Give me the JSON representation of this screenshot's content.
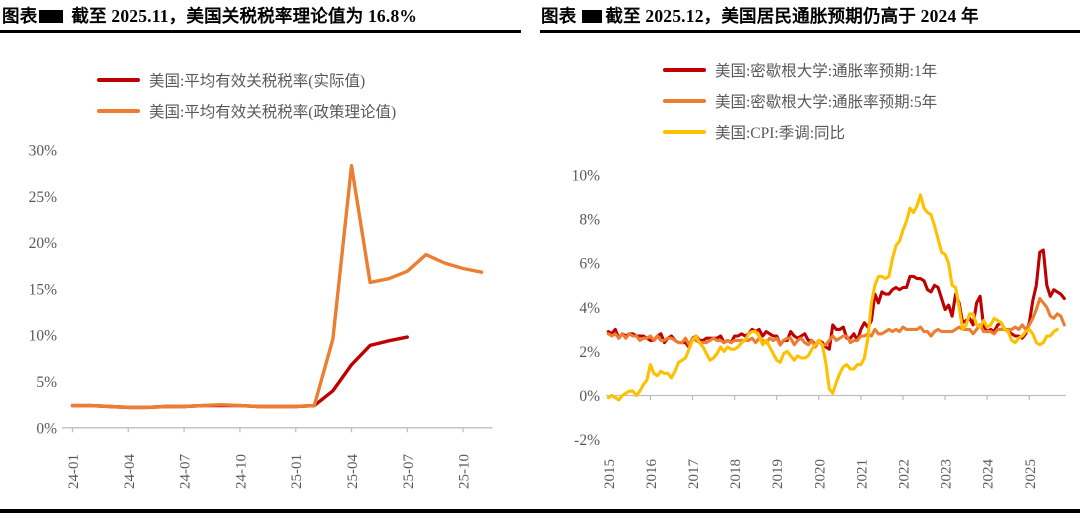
{
  "page": {
    "background": "#ffffff"
  },
  "chart_data": [
    {
      "type": "line",
      "fig_label": "图表",
      "title": "截至 2025.11，美国关税税率理论值为 16.8%",
      "x_start": "2024-01",
      "freq": "monthly",
      "x_tick_labels": [
        "24-01",
        "24-04",
        "24-07",
        "24-10",
        "25-01",
        "25-04",
        "25-07",
        "25-10"
      ],
      "y_tick_values": [
        0,
        5,
        10,
        15,
        20,
        25,
        30
      ],
      "y_tick_labels": [
        "0%",
        "5%",
        "10%",
        "15%",
        "20%",
        "25%",
        "30%"
      ],
      "ylim": [
        0,
        30
      ],
      "grid": false,
      "legend_position": "top",
      "axis_color": "#bfbfbf",
      "text_color": "#595959",
      "series": [
        {
          "name": "美国:平均有效关税税率(实际值)",
          "color": "#c00000",
          "values": [
            2.4,
            2.4,
            2.3,
            2.2,
            2.2,
            2.3,
            2.3,
            2.4,
            2.4,
            2.4,
            2.3,
            2.3,
            2.3,
            2.4,
            4.0,
            6.8,
            8.9,
            9.4,
            9.8
          ]
        },
        {
          "name": "美国:平均有效关税税率(政策理论值)",
          "color": "#ed7d31",
          "values": [
            2.4,
            2.4,
            2.3,
            2.2,
            2.2,
            2.3,
            2.3,
            2.4,
            2.5,
            2.4,
            2.3,
            2.3,
            2.3,
            2.4,
            9.6,
            28.3,
            15.7,
            16.1,
            16.9,
            18.7,
            17.8,
            17.2,
            16.8
          ]
        }
      ]
    },
    {
      "type": "line",
      "fig_label": "图表",
      "title": "截至 2025.12，美国居民通胀预期仍高于 2024 年",
      "x_start": "2015-01",
      "freq": "monthly",
      "x_tick_labels": [
        "2015",
        "2016",
        "2017",
        "2018",
        "2019",
        "2020",
        "2021",
        "2022",
        "2023",
        "2024",
        "2025"
      ],
      "y_tick_values": [
        -2,
        0,
        2,
        4,
        6,
        8,
        10
      ],
      "y_tick_labels": [
        "-2%",
        "0%",
        "2%",
        "4%",
        "6%",
        "8%",
        "10%"
      ],
      "ylim": [
        -2,
        10
      ],
      "grid": false,
      "legend_position": "top",
      "axis_color": "#bfbfbf",
      "text_color": "#595959",
      "series": [
        {
          "name": "美国:密歇根大学:通胀率预期:1年",
          "color": "#c00000",
          "values": [
            2.9,
            2.8,
            3.0,
            2.6,
            2.8,
            2.7,
            2.8,
            2.8,
            2.7,
            2.7,
            2.7,
            2.6,
            2.5,
            2.5,
            2.7,
            2.8,
            2.4,
            2.6,
            2.7,
            2.5,
            2.4,
            2.4,
            2.4,
            2.2,
            2.6,
            2.7,
            2.5,
            2.5,
            2.6,
            2.6,
            2.6,
            2.6,
            2.7,
            2.4,
            2.5,
            2.4,
            2.7,
            2.7,
            2.8,
            2.7,
            2.8,
            3.0,
            2.9,
            3.0,
            2.7,
            2.9,
            2.8,
            2.7,
            2.7,
            2.3,
            2.5,
            2.5,
            2.9,
            2.7,
            2.6,
            2.7,
            2.8,
            2.5,
            2.5,
            2.3,
            2.5,
            2.4,
            2.2,
            2.1,
            3.2,
            3.0,
            3.0,
            3.1,
            2.6,
            2.6,
            2.8,
            2.5,
            3.0,
            3.3,
            3.1,
            3.4,
            4.6,
            4.2,
            4.7,
            4.6,
            4.6,
            4.8,
            4.9,
            4.8,
            4.9,
            4.9,
            5.4,
            5.4,
            5.3,
            5.3,
            5.2,
            4.8,
            4.7,
            5.0,
            4.9,
            4.4,
            3.9,
            4.1,
            3.6,
            4.6,
            4.2,
            3.3,
            3.4,
            3.5,
            3.2,
            4.2,
            4.5,
            3.1,
            2.9,
            3.0,
            2.9,
            3.2,
            3.3,
            3.0,
            2.9,
            2.8,
            2.7,
            2.7,
            2.6,
            2.8,
            3.3,
            4.3,
            5.0,
            6.5,
            6.6,
            5.0,
            4.5,
            4.8,
            4.7,
            4.6,
            4.4
          ]
        },
        {
          "name": "美国:密歇根大学:通胀率预期:5年",
          "color": "#ed7d31",
          "values": [
            2.8,
            2.7,
            2.8,
            2.6,
            2.8,
            2.6,
            2.8,
            2.7,
            2.7,
            2.5,
            2.6,
            2.6,
            2.7,
            2.5,
            2.7,
            2.5,
            2.5,
            2.6,
            2.6,
            2.5,
            2.4,
            2.4,
            2.6,
            2.3,
            2.6,
            2.5,
            2.4,
            2.4,
            2.4,
            2.5,
            2.6,
            2.5,
            2.5,
            2.4,
            2.5,
            2.4,
            2.5,
            2.5,
            2.5,
            2.5,
            2.5,
            2.6,
            2.4,
            2.6,
            2.5,
            2.4,
            2.6,
            2.5,
            2.6,
            2.3,
            2.5,
            2.6,
            2.6,
            2.3,
            2.5,
            2.6,
            2.4,
            2.3,
            2.5,
            2.2,
            2.5,
            2.3,
            2.3,
            2.5,
            2.7,
            2.5,
            2.6,
            2.7,
            2.7,
            2.4,
            2.5,
            2.5,
            2.7,
            2.7,
            2.8,
            2.7,
            3.0,
            2.8,
            2.8,
            2.9,
            3.0,
            2.9,
            3.0,
            2.9,
            3.1,
            3.0,
            3.0,
            3.0,
            3.0,
            3.1,
            2.9,
            2.9,
            2.7,
            2.9,
            3.0,
            2.9,
            2.9,
            2.9,
            2.9,
            3.0,
            3.1,
            3.0,
            3.0,
            3.0,
            2.8,
            3.0,
            3.2,
            2.9,
            2.9,
            2.9,
            2.8,
            3.0,
            3.0,
            3.0,
            3.0,
            3.0,
            3.1,
            3.0,
            3.2,
            3.0,
            3.2,
            3.5,
            3.9,
            4.4,
            4.2,
            4.0,
            3.6,
            3.5,
            3.7,
            3.6,
            3.2
          ]
        },
        {
          "name": "美国:CPI:季调:同比",
          "color": "#ffc000",
          "values": [
            -0.1,
            0.0,
            -0.1,
            -0.2,
            0.0,
            0.1,
            0.2,
            0.2,
            0.0,
            0.2,
            0.5,
            0.7,
            1.4,
            1.0,
            0.9,
            1.1,
            1.0,
            1.0,
            0.8,
            1.1,
            1.5,
            1.6,
            1.7,
            2.1,
            2.5,
            2.7,
            2.4,
            2.2,
            1.9,
            1.6,
            1.7,
            1.9,
            2.2,
            2.0,
            2.2,
            2.1,
            2.1,
            2.2,
            2.4,
            2.5,
            2.8,
            2.9,
            2.9,
            2.7,
            2.3,
            2.5,
            2.2,
            1.9,
            1.6,
            1.5,
            1.9,
            2.0,
            1.8,
            1.6,
            1.8,
            1.7,
            1.7,
            1.8,
            2.1,
            2.3,
            2.5,
            2.3,
            1.5,
            0.3,
            0.1,
            0.6,
            1.0,
            1.3,
            1.4,
            1.2,
            1.2,
            1.4,
            1.4,
            1.7,
            2.6,
            4.2,
            5.0,
            5.4,
            5.4,
            5.3,
            5.4,
            6.2,
            6.8,
            7.0,
            7.5,
            7.9,
            8.5,
            8.3,
            8.6,
            9.1,
            8.5,
            8.3,
            8.2,
            7.7,
            7.1,
            6.5,
            6.4,
            6.0,
            5.0,
            4.9,
            4.0,
            3.0,
            3.2,
            3.7,
            3.7,
            3.2,
            3.1,
            3.4,
            3.1,
            3.2,
            3.5,
            3.4,
            3.3,
            3.0,
            2.9,
            2.5,
            2.4,
            2.6,
            2.7,
            2.9,
            3.0,
            2.8,
            2.4,
            2.3,
            2.4,
            2.7,
            2.7,
            2.9,
            3.0
          ]
        }
      ]
    }
  ]
}
